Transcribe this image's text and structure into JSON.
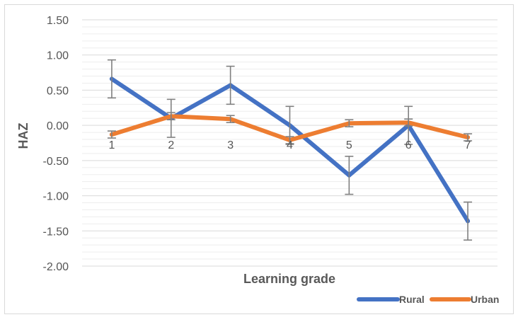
{
  "chart_data": {
    "type": "line",
    "title": "",
    "xlabel": "Learning grade",
    "ylabel": "HAZ",
    "categories": [
      "1",
      "2",
      "3",
      "4",
      "5",
      "6",
      "7"
    ],
    "yticks": [
      "1.50",
      "1.00",
      "0.50",
      "0.00",
      "-0.50",
      "-1.00",
      "-1.50",
      "-2.00"
    ],
    "ylim": [
      -2.0,
      1.5
    ],
    "grid": true,
    "legend_position": "bottom-right",
    "series": [
      {
        "name": "Rural",
        "color": "#4472C4",
        "values": [
          0.66,
          0.1,
          0.57,
          0.0,
          -0.71,
          0.0,
          -1.36
        ],
        "error": [
          0.27,
          0.27,
          0.27,
          0.27,
          0.27,
          0.27,
          0.27
        ]
      },
      {
        "name": "Urban",
        "color": "#ED7D31",
        "values": [
          -0.13,
          0.13,
          0.09,
          -0.21,
          0.03,
          0.04,
          -0.17
        ],
        "error": [
          0.05,
          0.05,
          0.05,
          0.05,
          0.05,
          0.05,
          0.05
        ]
      }
    ]
  }
}
